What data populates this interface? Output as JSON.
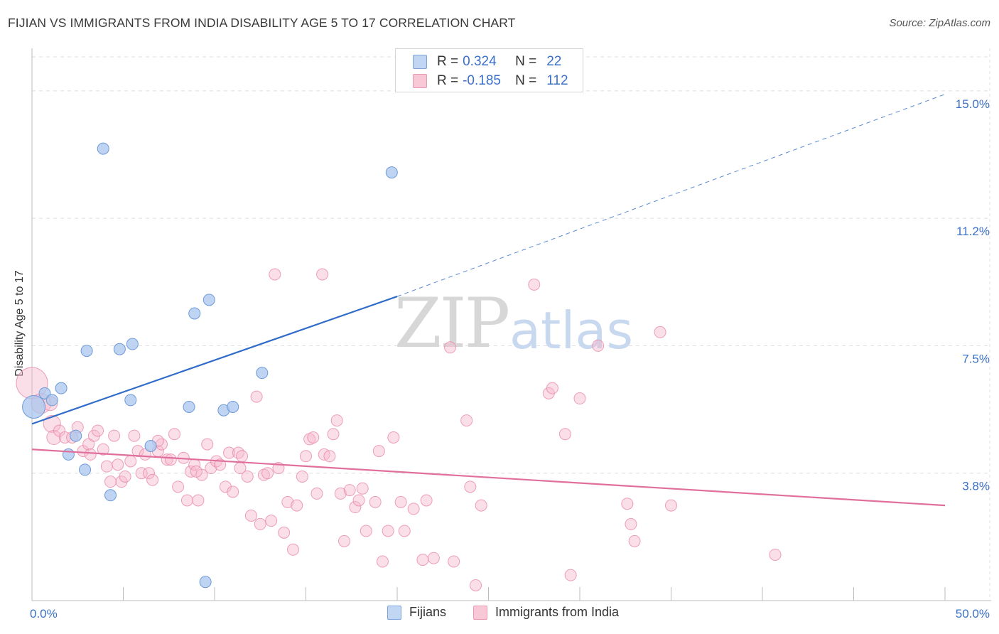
{
  "title": "FIJIAN VS IMMIGRANTS FROM INDIA DISABILITY AGE 5 TO 17 CORRELATION CHART",
  "source": "Source: ZipAtlas.com",
  "watermark": {
    "zip": "ZIP",
    "atlas": "atlas"
  },
  "colors": {
    "fijian_fill": "#a9c6ee",
    "fijian_stroke": "#6e9ad8",
    "fijian_line": "#2f6cc9",
    "india_fill": "#f6b8cb",
    "india_stroke": "#e88aa8",
    "india_line": "#e0709b",
    "axis_label": "#3a70c8",
    "grid": "#dddddd"
  },
  "legend": {
    "rows": [
      {
        "r_label": "R =",
        "r_value": "0.324",
        "n_label": "N =",
        "n_value": "22"
      },
      {
        "r_label": "R =",
        "r_value": "-0.185",
        "n_label": "N =",
        "n_value": "112"
      }
    ],
    "series_names": [
      "Fijians",
      "Immigrants from India"
    ]
  },
  "chart_data": {
    "type": "scatter",
    "title": "FIJIAN VS IMMIGRANTS FROM INDIA DISABILITY AGE 5 TO 17 CORRELATION CHART",
    "xlabel": "",
    "ylabel": "Disability Age 5 to 17",
    "xlim": [
      0,
      50
    ],
    "ylim": [
      0,
      16
    ],
    "x_tick_labels": [
      {
        "value": 0,
        "label": "0.0%"
      },
      {
        "value": 50,
        "label": "50.0%"
      }
    ],
    "y_tick_labels": [
      {
        "value": 3.75,
        "label": "3.8%"
      },
      {
        "value": 7.5,
        "label": "7.5%"
      },
      {
        "value": 11.25,
        "label": "11.2%"
      },
      {
        "value": 15.0,
        "label": "15.0%"
      }
    ],
    "x_minor_ticks": [
      5,
      10,
      15,
      20,
      25,
      30,
      35,
      40,
      45
    ],
    "series": [
      {
        "name": "Fijians",
        "R": 0.324,
        "N": 22,
        "trend": {
          "x": [
            0,
            20
          ],
          "y": [
            5.2,
            8.95
          ],
          "dashed_extension": {
            "x": [
              20,
              50
            ],
            "y": [
              8.95,
              14.9
            ]
          }
        },
        "points": [
          [
            0.1,
            5.7,
            16
          ],
          [
            0.7,
            6.1,
            8
          ],
          [
            1.1,
            5.9,
            8
          ],
          [
            1.6,
            6.25,
            8
          ],
          [
            2.4,
            4.85,
            8
          ],
          [
            2.0,
            4.3,
            8
          ],
          [
            3.0,
            7.35,
            8
          ],
          [
            3.9,
            13.3,
            8
          ],
          [
            4.3,
            3.1,
            8
          ],
          [
            2.9,
            3.85,
            8
          ],
          [
            4.8,
            7.4,
            8
          ],
          [
            5.4,
            5.9,
            8
          ],
          [
            5.5,
            7.55,
            8
          ],
          [
            6.5,
            4.55,
            8
          ],
          [
            8.6,
            5.7,
            8
          ],
          [
            8.9,
            8.45,
            8
          ],
          [
            9.5,
            0.55,
            8
          ],
          [
            9.7,
            8.85,
            8
          ],
          [
            10.5,
            5.6,
            8
          ],
          [
            11.0,
            5.7,
            8
          ],
          [
            12.6,
            6.7,
            8
          ],
          [
            19.7,
            12.6,
            8
          ]
        ]
      },
      {
        "name": "Immigrants from India",
        "R": -0.185,
        "N": 112,
        "trend": {
          "x": [
            0,
            50
          ],
          "y": [
            4.45,
            2.8
          ]
        },
        "points": [
          [
            0,
            6.4,
            22
          ],
          [
            0.5,
            5.8,
            14
          ],
          [
            1.0,
            5.8,
            10
          ],
          [
            1.1,
            5.2,
            12
          ],
          [
            1.2,
            4.8,
            10
          ],
          [
            1.5,
            5.0,
            8
          ],
          [
            1.8,
            4.8,
            8
          ],
          [
            2.2,
            4.8,
            8
          ],
          [
            2.5,
            5.1,
            8
          ],
          [
            2.8,
            4.4,
            8
          ],
          [
            3.1,
            4.6,
            8
          ],
          [
            3.2,
            4.3,
            8
          ],
          [
            3.4,
            4.85,
            8
          ],
          [
            3.6,
            5.0,
            8
          ],
          [
            3.9,
            4.45,
            8
          ],
          [
            4.1,
            3.95,
            8
          ],
          [
            4.3,
            3.5,
            8
          ],
          [
            4.5,
            4.85,
            8
          ],
          [
            4.7,
            4.0,
            8
          ],
          [
            4.9,
            3.5,
            8
          ],
          [
            5.1,
            3.65,
            8
          ],
          [
            5.4,
            4.1,
            8
          ],
          [
            5.6,
            4.85,
            8
          ],
          [
            5.8,
            4.4,
            8
          ],
          [
            6.0,
            3.75,
            8
          ],
          [
            6.2,
            4.3,
            8
          ],
          [
            6.4,
            3.75,
            8
          ],
          [
            6.6,
            3.55,
            8
          ],
          [
            6.9,
            4.4,
            8
          ],
          [
            7.1,
            4.6,
            8
          ],
          [
            7.4,
            4.15,
            8
          ],
          [
            7.6,
            4.15,
            8
          ],
          [
            7.8,
            4.9,
            8
          ],
          [
            8.0,
            3.35,
            8
          ],
          [
            8.3,
            4.2,
            8
          ],
          [
            8.5,
            2.95,
            8
          ],
          [
            8.7,
            3.8,
            8
          ],
          [
            8.9,
            4.0,
            8
          ],
          [
            9.1,
            2.95,
            8
          ],
          [
            9.3,
            3.7,
            8
          ],
          [
            9.6,
            4.6,
            8
          ],
          [
            9.8,
            3.9,
            8
          ],
          [
            10.1,
            4.1,
            8
          ],
          [
            10.3,
            4.0,
            8
          ],
          [
            10.6,
            3.35,
            8
          ],
          [
            10.8,
            4.35,
            8
          ],
          [
            11.0,
            3.2,
            8
          ],
          [
            11.3,
            4.35,
            8
          ],
          [
            11.5,
            4.25,
            8
          ],
          [
            11.8,
            3.65,
            8
          ],
          [
            12.0,
            2.5,
            8
          ],
          [
            12.3,
            6.0,
            8
          ],
          [
            12.5,
            2.25,
            8
          ],
          [
            12.7,
            3.7,
            8
          ],
          [
            12.9,
            3.75,
            8
          ],
          [
            13.1,
            2.35,
            8
          ],
          [
            13.3,
            9.6,
            8
          ],
          [
            13.5,
            3.9,
            8
          ],
          [
            13.8,
            2.0,
            8
          ],
          [
            14.0,
            2.9,
            8
          ],
          [
            14.3,
            1.5,
            8
          ],
          [
            14.5,
            2.8,
            8
          ],
          [
            14.8,
            3.65,
            8
          ],
          [
            15.0,
            4.25,
            8
          ],
          [
            15.2,
            4.75,
            8
          ],
          [
            15.4,
            4.8,
            8
          ],
          [
            15.6,
            3.15,
            8
          ],
          [
            15.9,
            9.6,
            8
          ],
          [
            16.0,
            4.3,
            8
          ],
          [
            16.3,
            4.25,
            8
          ],
          [
            16.5,
            4.9,
            8
          ],
          [
            16.7,
            5.3,
            8
          ],
          [
            16.9,
            3.15,
            8
          ],
          [
            17.1,
            1.75,
            8
          ],
          [
            17.4,
            3.25,
            8
          ],
          [
            17.7,
            2.75,
            8
          ],
          [
            17.9,
            2.95,
            8
          ],
          [
            18.1,
            3.3,
            8
          ],
          [
            18.3,
            2.05,
            8
          ],
          [
            19.0,
            4.4,
            8
          ],
          [
            19.2,
            1.15,
            8
          ],
          [
            19.5,
            2.05,
            8
          ],
          [
            19.8,
            4.8,
            8
          ],
          [
            20.2,
            2.9,
            8
          ],
          [
            20.4,
            2.05,
            8
          ],
          [
            20.9,
            2.7,
            8
          ],
          [
            21.4,
            1.2,
            8
          ],
          [
            21.6,
            2.95,
            8
          ],
          [
            22.0,
            1.25,
            8
          ],
          [
            22.9,
            7.45,
            8
          ],
          [
            23.1,
            1.15,
            8
          ],
          [
            23.8,
            5.3,
            8
          ],
          [
            24.0,
            3.35,
            8
          ],
          [
            24.3,
            0.45,
            8
          ],
          [
            24.6,
            2.8,
            8
          ],
          [
            27.5,
            9.3,
            8
          ],
          [
            28.3,
            6.1,
            8
          ],
          [
            28.5,
            6.25,
            8
          ],
          [
            29.2,
            4.9,
            8
          ],
          [
            29.5,
            0.75,
            8
          ],
          [
            30.0,
            5.95,
            8
          ],
          [
            31.0,
            7.5,
            8
          ],
          [
            32.6,
            2.85,
            8
          ],
          [
            32.8,
            2.25,
            8
          ],
          [
            33.0,
            1.75,
            8
          ],
          [
            34.4,
            7.9,
            8
          ],
          [
            35.0,
            2.8,
            8
          ],
          [
            40.7,
            1.35,
            8
          ],
          [
            6.9,
            4.7,
            8
          ],
          [
            9.0,
            3.8,
            8
          ],
          [
            11.4,
            3.9,
            8
          ],
          [
            18.8,
            2.9,
            8
          ]
        ]
      }
    ]
  }
}
